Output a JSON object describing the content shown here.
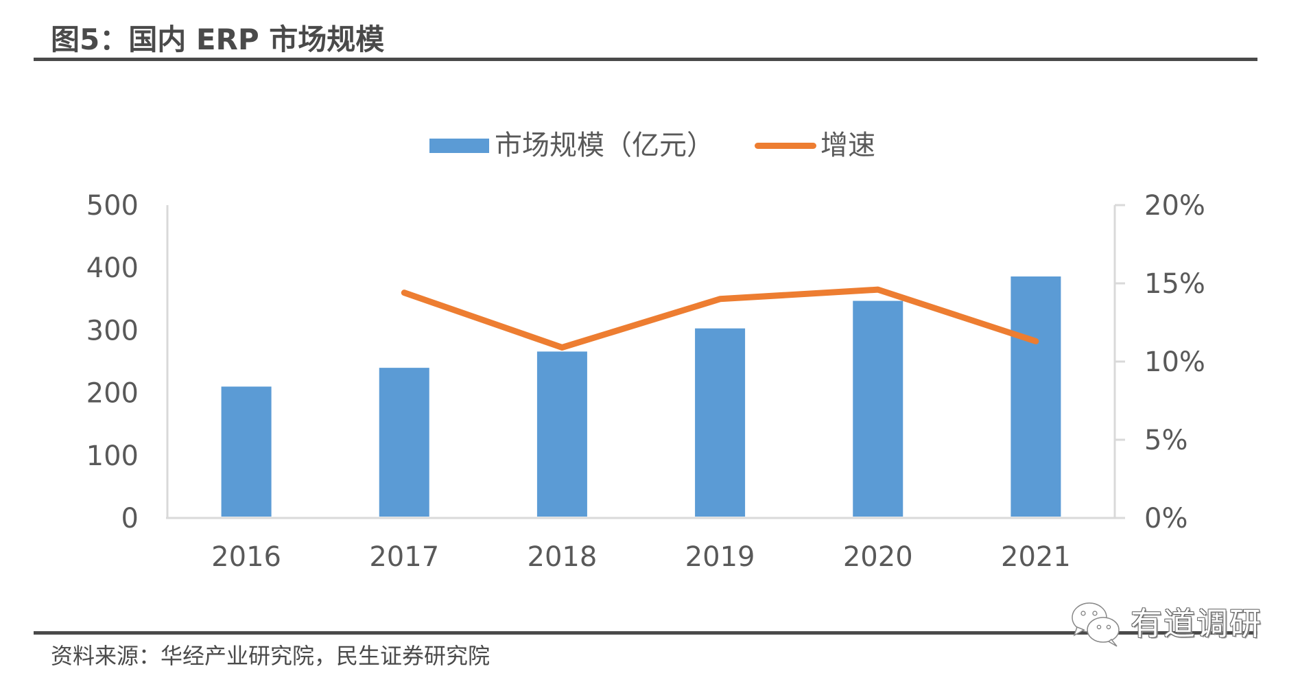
{
  "figure": {
    "title": "图5：国内 ERP 市场规模",
    "source": "资料来源：华经产业研究院，民生证券研究院",
    "watermark": "有道调研",
    "watermark_icon": "wechat-icon"
  },
  "colors": {
    "bar": "#5b9bd5",
    "line": "#ed7d31",
    "axis": "#d9d9d9",
    "text": "#595959",
    "rule": "#4a4a4a"
  },
  "chart_data": {
    "type": "bar",
    "title": "国内 ERP 市场规模",
    "categories": [
      "2016",
      "2017",
      "2018",
      "2019",
      "2020",
      "2021"
    ],
    "series": [
      {
        "name": "市场规模（亿元）",
        "type": "bar",
        "axis": "left",
        "values": [
          210,
          240,
          266,
          303,
          347,
          386
        ]
      },
      {
        "name": "增速",
        "type": "line",
        "axis": "right",
        "values": [
          null,
          0.144,
          0.109,
          0.14,
          0.146,
          0.113
        ]
      }
    ],
    "left_axis": {
      "ylim": [
        0,
        500
      ],
      "ticks": [
        0,
        100,
        200,
        300,
        400,
        500
      ],
      "tick_labels": [
        "0",
        "100",
        "200",
        "300",
        "400",
        "500"
      ]
    },
    "right_axis": {
      "ylim": [
        0,
        0.2
      ],
      "ticks": [
        0,
        0.05,
        0.1,
        0.15,
        0.2
      ],
      "tick_labels": [
        "0%",
        "5%",
        "10%",
        "15%",
        "20%"
      ]
    },
    "xlabel": "",
    "ylabel": "",
    "grid": false,
    "legend": {
      "position": "top-center",
      "entries": [
        "市场规模（亿元）",
        "增速"
      ]
    }
  }
}
